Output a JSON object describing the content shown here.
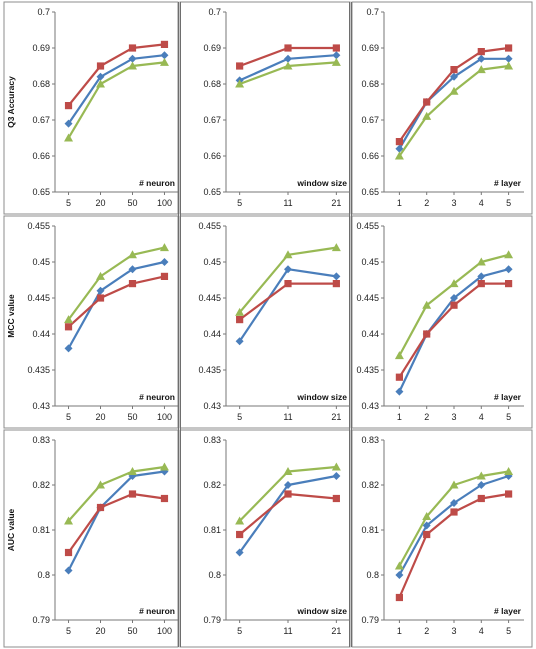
{
  "colors": {
    "blue": "#4a7ebb",
    "red": "#be4b48",
    "green": "#98b954"
  },
  "y_labels": [
    "Q3  Accuracy",
    "MCC value",
    "AUC value"
  ],
  "chart_data": [
    {
      "type": "line",
      "row": 0,
      "col": 0,
      "xlabel": "# neuron",
      "categories": [
        "5",
        "20",
        "50",
        "100"
      ],
      "ylim": [
        0.65,
        0.7
      ],
      "yticks": [
        "0.65",
        "0.66",
        "0.67",
        "0.68",
        "0.69",
        "0.7"
      ],
      "series": [
        {
          "color": "blue",
          "marker": "diamond",
          "values": [
            0.669,
            0.682,
            0.687,
            0.688
          ]
        },
        {
          "color": "red",
          "marker": "square",
          "values": [
            0.674,
            0.685,
            0.69,
            0.691
          ]
        },
        {
          "color": "green",
          "marker": "triangle",
          "values": [
            0.665,
            0.68,
            0.685,
            0.686
          ]
        }
      ]
    },
    {
      "type": "line",
      "row": 0,
      "col": 1,
      "xlabel": "window size",
      "categories": [
        "5",
        "11",
        "21"
      ],
      "ylim": [
        0.65,
        0.7
      ],
      "yticks": [
        "0.65",
        "0.66",
        "0.67",
        "0.68",
        "0.69",
        "0.7"
      ],
      "series": [
        {
          "color": "blue",
          "marker": "diamond",
          "values": [
            0.681,
            0.687,
            0.688
          ]
        },
        {
          "color": "red",
          "marker": "square",
          "values": [
            0.685,
            0.69,
            0.69
          ]
        },
        {
          "color": "green",
          "marker": "triangle",
          "values": [
            0.68,
            0.685,
            0.686
          ]
        }
      ]
    },
    {
      "type": "line",
      "row": 0,
      "col": 2,
      "xlabel": "# layer",
      "categories": [
        "1",
        "2",
        "3",
        "4",
        "5"
      ],
      "ylim": [
        0.65,
        0.7
      ],
      "yticks": [
        "0.65",
        "0.66",
        "0.67",
        "0.68",
        "0.69",
        "0.7"
      ],
      "series": [
        {
          "color": "blue",
          "marker": "diamond",
          "values": [
            0.662,
            0.675,
            0.682,
            0.687,
            0.687
          ]
        },
        {
          "color": "red",
          "marker": "square",
          "values": [
            0.664,
            0.675,
            0.684,
            0.689,
            0.69
          ]
        },
        {
          "color": "green",
          "marker": "triangle",
          "values": [
            0.66,
            0.671,
            0.678,
            0.684,
            0.685
          ]
        }
      ]
    },
    {
      "type": "line",
      "row": 1,
      "col": 0,
      "xlabel": "# neuron",
      "categories": [
        "5",
        "20",
        "50",
        "100"
      ],
      "ylim": [
        0.43,
        0.455
      ],
      "yticks": [
        "0.43",
        "0.435",
        "0.44",
        "0.445",
        "0.45",
        "0.455"
      ],
      "series": [
        {
          "color": "blue",
          "marker": "diamond",
          "values": [
            0.438,
            0.446,
            0.449,
            0.45
          ]
        },
        {
          "color": "red",
          "marker": "square",
          "values": [
            0.441,
            0.445,
            0.447,
            0.448
          ]
        },
        {
          "color": "green",
          "marker": "triangle",
          "values": [
            0.442,
            0.448,
            0.451,
            0.452
          ]
        }
      ]
    },
    {
      "type": "line",
      "row": 1,
      "col": 1,
      "xlabel": "window size",
      "categories": [
        "5",
        "11",
        "21"
      ],
      "ylim": [
        0.43,
        0.455
      ],
      "yticks": [
        "0.43",
        "0.435",
        "0.44",
        "0.445",
        "0.45",
        "0.455"
      ],
      "series": [
        {
          "color": "blue",
          "marker": "diamond",
          "values": [
            0.439,
            0.449,
            0.448
          ]
        },
        {
          "color": "red",
          "marker": "square",
          "values": [
            0.442,
            0.447,
            0.447
          ]
        },
        {
          "color": "green",
          "marker": "triangle",
          "values": [
            0.443,
            0.451,
            0.452
          ]
        }
      ]
    },
    {
      "type": "line",
      "row": 1,
      "col": 2,
      "xlabel": "# layer",
      "categories": [
        "1",
        "2",
        "3",
        "4",
        "5"
      ],
      "ylim": [
        0.43,
        0.455
      ],
      "yticks": [
        "0.43",
        "0.435",
        "0.44",
        "0.445",
        "0.45",
        "0.455"
      ],
      "series": [
        {
          "color": "blue",
          "marker": "diamond",
          "values": [
            0.432,
            0.44,
            0.445,
            0.448,
            0.449
          ]
        },
        {
          "color": "red",
          "marker": "square",
          "values": [
            0.434,
            0.44,
            0.444,
            0.447,
            0.447
          ]
        },
        {
          "color": "green",
          "marker": "triangle",
          "values": [
            0.437,
            0.444,
            0.447,
            0.45,
            0.451
          ]
        }
      ]
    },
    {
      "type": "line",
      "row": 2,
      "col": 0,
      "xlabel": "# neuron",
      "categories": [
        "5",
        "20",
        "50",
        "100"
      ],
      "ylim": [
        0.79,
        0.83
      ],
      "yticks": [
        "0.79",
        "0.8",
        "0.81",
        "0.82",
        "0.83"
      ],
      "series": [
        {
          "color": "blue",
          "marker": "diamond",
          "values": [
            0.801,
            0.815,
            0.822,
            0.823
          ]
        },
        {
          "color": "red",
          "marker": "square",
          "values": [
            0.805,
            0.815,
            0.818,
            0.817
          ]
        },
        {
          "color": "green",
          "marker": "triangle",
          "values": [
            0.812,
            0.82,
            0.823,
            0.824
          ]
        }
      ]
    },
    {
      "type": "line",
      "row": 2,
      "col": 1,
      "xlabel": "window size",
      "categories": [
        "5",
        "11",
        "21"
      ],
      "ylim": [
        0.79,
        0.83
      ],
      "yticks": [
        "0.79",
        "0.8",
        "0.81",
        "0.82",
        "0.83"
      ],
      "series": [
        {
          "color": "blue",
          "marker": "diamond",
          "values": [
            0.805,
            0.82,
            0.822
          ]
        },
        {
          "color": "red",
          "marker": "square",
          "values": [
            0.809,
            0.818,
            0.817
          ]
        },
        {
          "color": "green",
          "marker": "triangle",
          "values": [
            0.812,
            0.823,
            0.824
          ]
        }
      ]
    },
    {
      "type": "line",
      "row": 2,
      "col": 2,
      "xlabel": "# layer",
      "categories": [
        "1",
        "2",
        "3",
        "4",
        "5"
      ],
      "ylim": [
        0.79,
        0.83
      ],
      "yticks": [
        "0.79",
        "0.8",
        "0.81",
        "0.82",
        "0.83"
      ],
      "series": [
        {
          "color": "blue",
          "marker": "diamond",
          "values": [
            0.8,
            0.811,
            0.816,
            0.82,
            0.822
          ]
        },
        {
          "color": "red",
          "marker": "square",
          "values": [
            0.795,
            0.809,
            0.814,
            0.817,
            0.818
          ]
        },
        {
          "color": "green",
          "marker": "triangle",
          "values": [
            0.802,
            0.813,
            0.82,
            0.822,
            0.823
          ]
        }
      ]
    }
  ]
}
